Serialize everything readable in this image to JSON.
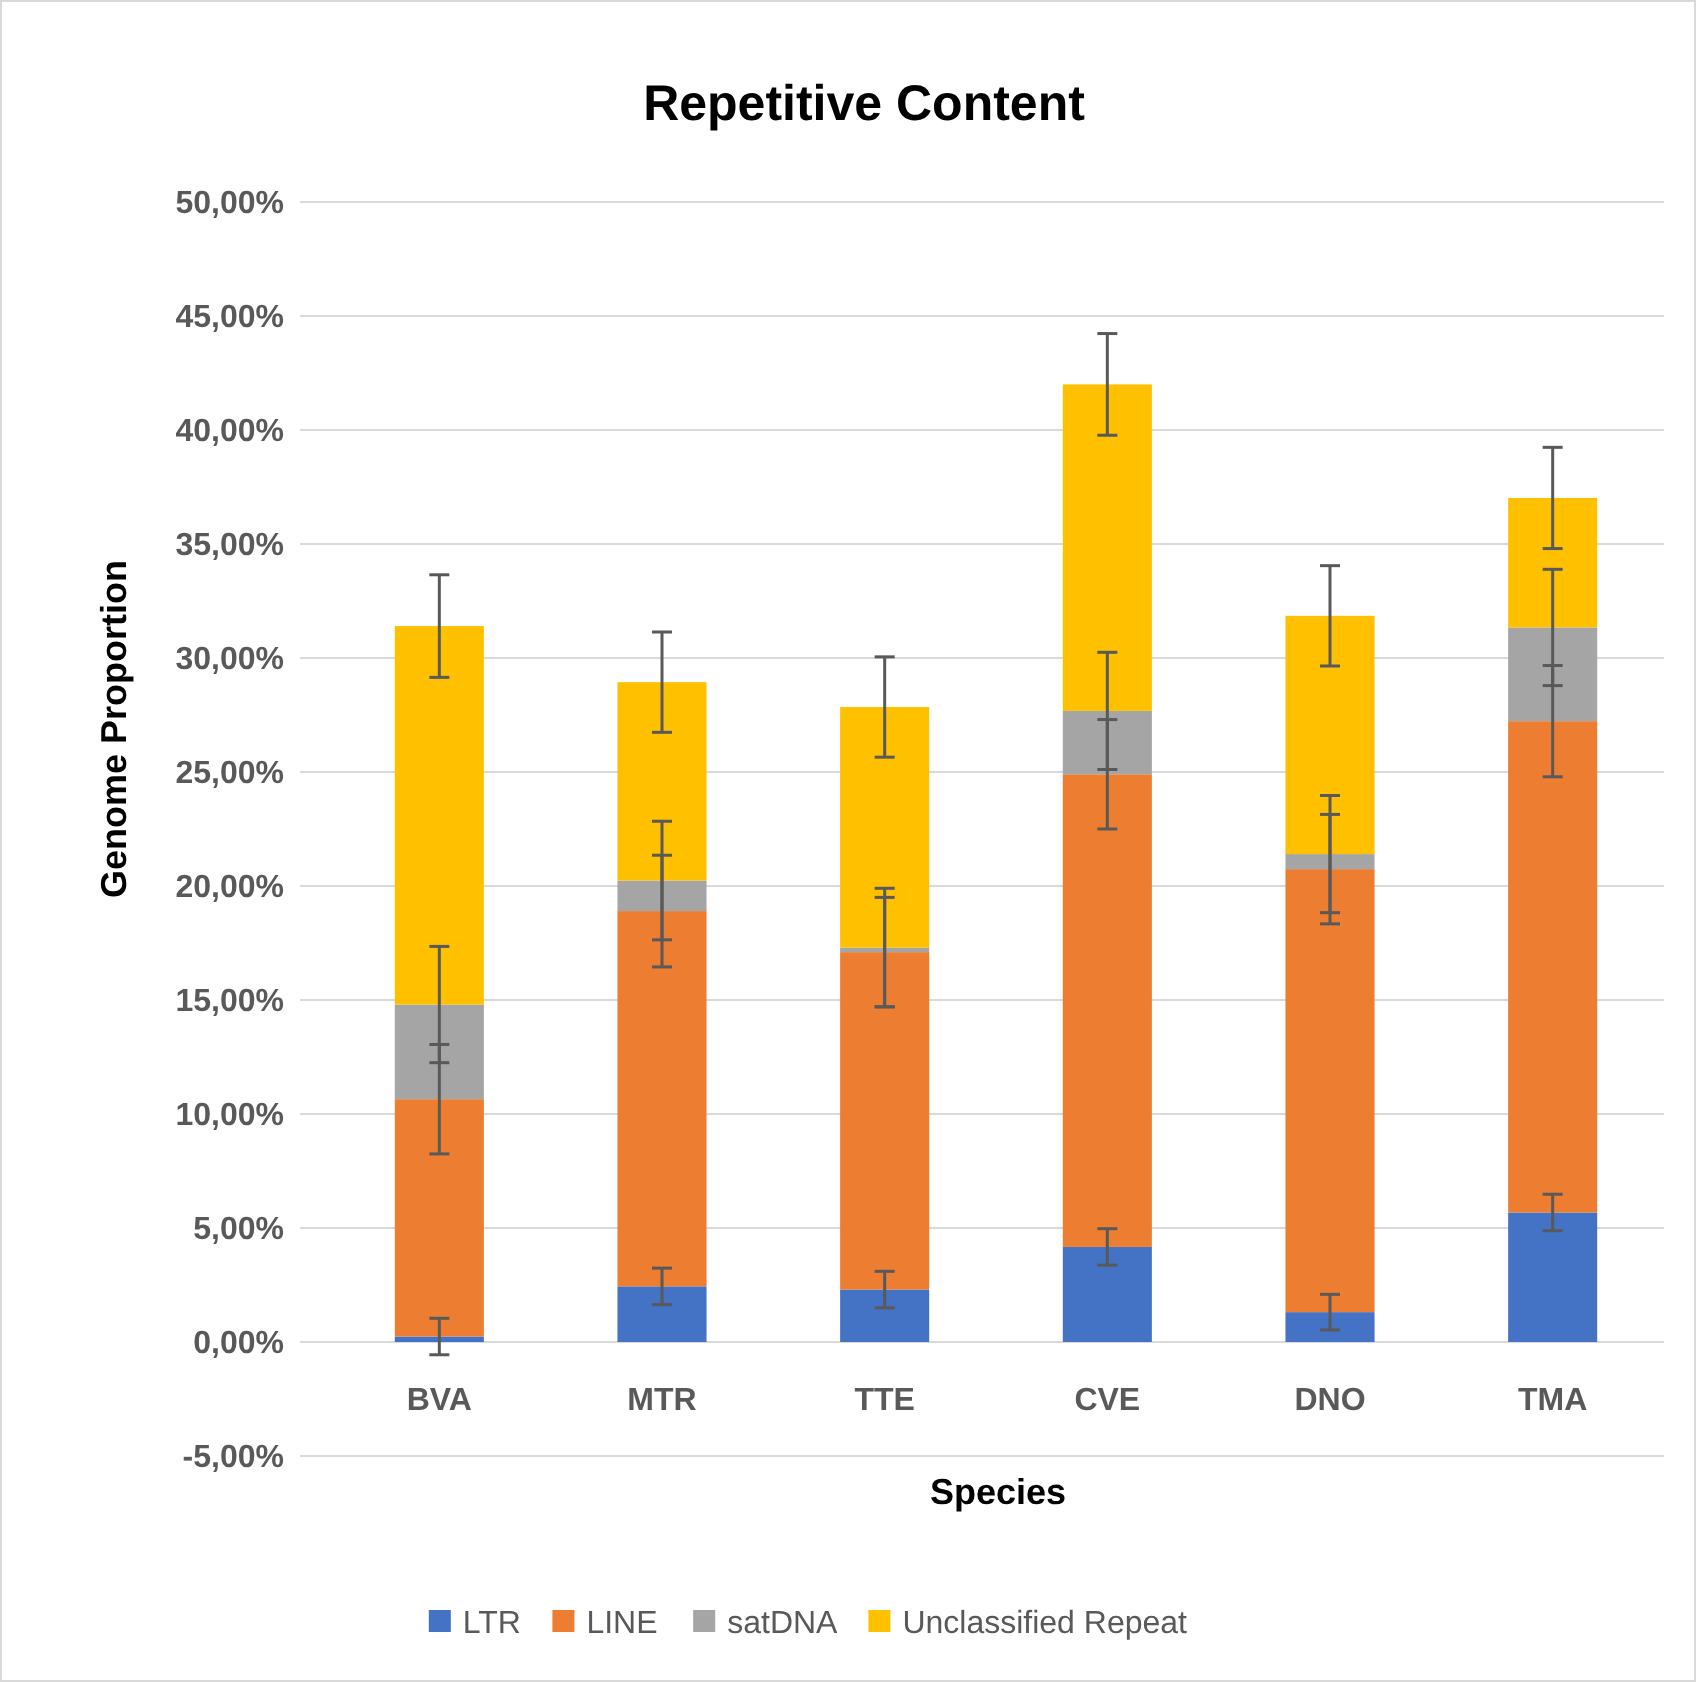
{
  "chart_data": {
    "type": "bar",
    "title": "Repetitive Content",
    "xlabel": "Species",
    "ylabel": "Genome Proportion",
    "categories": [
      "BVA",
      "MTR",
      "TTE",
      "CVE",
      "DNO",
      "TMA"
    ],
    "stacked": true,
    "series": [
      {
        "name": "LTR",
        "color": "#4472c4",
        "values": [
          0.24,
          2.44,
          2.3,
          4.17,
          1.31,
          5.68
        ],
        "errors": [
          0.8,
          0.8,
          0.8,
          0.8,
          0.78,
          0.8
        ]
      },
      {
        "name": "LINE",
        "color": "#ed7d31",
        "values": [
          10.41,
          16.46,
          14.8,
          20.73,
          19.43,
          21.55
        ],
        "errors": [
          2.4,
          2.45,
          2.4,
          2.4,
          2.4,
          2.44
        ]
      },
      {
        "name": "satDNA",
        "color": "#a5a5a5",
        "values": [
          4.15,
          1.34,
          0.2,
          2.78,
          0.66,
          4.11
        ],
        "errors": [
          2.55,
          2.6,
          2.6,
          2.57,
          2.57,
          2.55
        ]
      },
      {
        "name": "Unclassified Repeat",
        "color": "#ffc000",
        "values": [
          16.6,
          8.7,
          10.55,
          14.32,
          10.45,
          5.68
        ],
        "errors": [
          2.25,
          2.2,
          2.2,
          2.23,
          2.2,
          2.22
        ]
      }
    ],
    "ylim": [
      -5,
      50
    ],
    "yticks": [
      {
        "value": -5,
        "label": "-5,00%"
      },
      {
        "value": 0,
        "label": "0,00%"
      },
      {
        "value": 5,
        "label": "5,00%"
      },
      {
        "value": 10,
        "label": "10,00%"
      },
      {
        "value": 15,
        "label": "15,00%"
      },
      {
        "value": 20,
        "label": "20,00%"
      },
      {
        "value": 25,
        "label": "25,00%"
      },
      {
        "value": 30,
        "label": "30,00%"
      },
      {
        "value": 35,
        "label": "35,00%"
      },
      {
        "value": 40,
        "label": "40,00%"
      },
      {
        "value": 45,
        "label": "45,00%"
      },
      {
        "value": 50,
        "label": "50,00%"
      }
    ],
    "grid": "y",
    "legend": "bottom"
  }
}
